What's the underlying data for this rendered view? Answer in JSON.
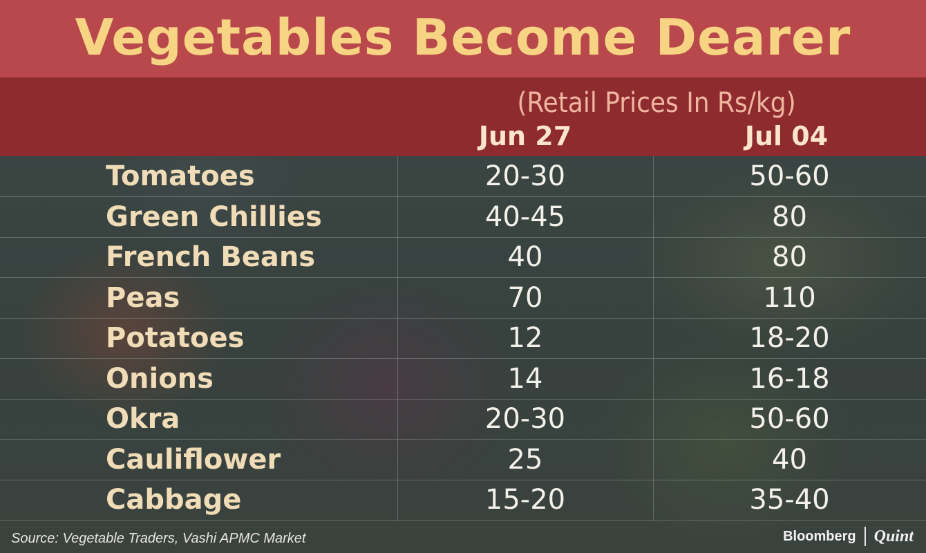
{
  "title": "Vegetables Become Dearer",
  "subtitle": "(Retail Prices In Rs/kg)",
  "source": "Source: Vegetable Traders, Vashi APMC Market",
  "brand": {
    "left": "Bloomberg",
    "right": "Quint"
  },
  "colors": {
    "title_band": "#b8484b",
    "header_band": "#8e2b2f",
    "title_text": "#f6d483",
    "row_label": "#f1dcb8",
    "value_text": "#f3f1ea"
  },
  "chart_data": {
    "type": "table",
    "title": "Vegetables Become Dearer",
    "subtitle": "(Retail Prices In Rs/kg)",
    "columns": [
      "Jun 27",
      "Jul 04"
    ],
    "rows": [
      {
        "name": "Tomatoes",
        "values": [
          "20-30",
          "50-60"
        ]
      },
      {
        "name": "Green Chillies",
        "values": [
          "40-45",
          "80"
        ]
      },
      {
        "name": "French Beans",
        "values": [
          "40",
          "80"
        ]
      },
      {
        "name": "Peas",
        "values": [
          "70",
          "110"
        ]
      },
      {
        "name": "Potatoes",
        "values": [
          "12",
          "18-20"
        ]
      },
      {
        "name": "Onions",
        "values": [
          "14",
          "16-18"
        ]
      },
      {
        "name": "Okra",
        "values": [
          "20-30",
          "50-60"
        ]
      },
      {
        "name": "Cauliflower",
        "values": [
          "25",
          "40"
        ]
      },
      {
        "name": "Cabbage",
        "values": [
          "15-20",
          "35-40"
        ]
      }
    ],
    "source": "Source: Vegetable Traders, Vashi APMC Market"
  }
}
